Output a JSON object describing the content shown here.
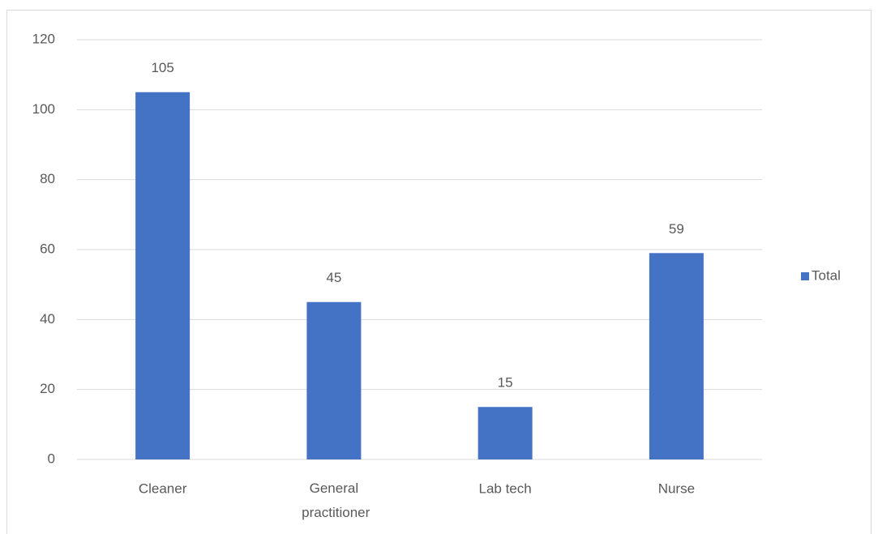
{
  "chart_data": {
    "type": "bar",
    "categories": [
      "Cleaner",
      "General practitioner",
      "Lab tech",
      "Nurse"
    ],
    "series": [
      {
        "name": "Total",
        "color": "#4472c4",
        "values": [
          105,
          45,
          15,
          59
        ]
      }
    ],
    "ylim": [
      0,
      120
    ],
    "yticks": [
      0,
      20,
      40,
      60,
      80,
      100,
      120
    ],
    "grid": true,
    "legend": "right",
    "data_labels": true
  }
}
